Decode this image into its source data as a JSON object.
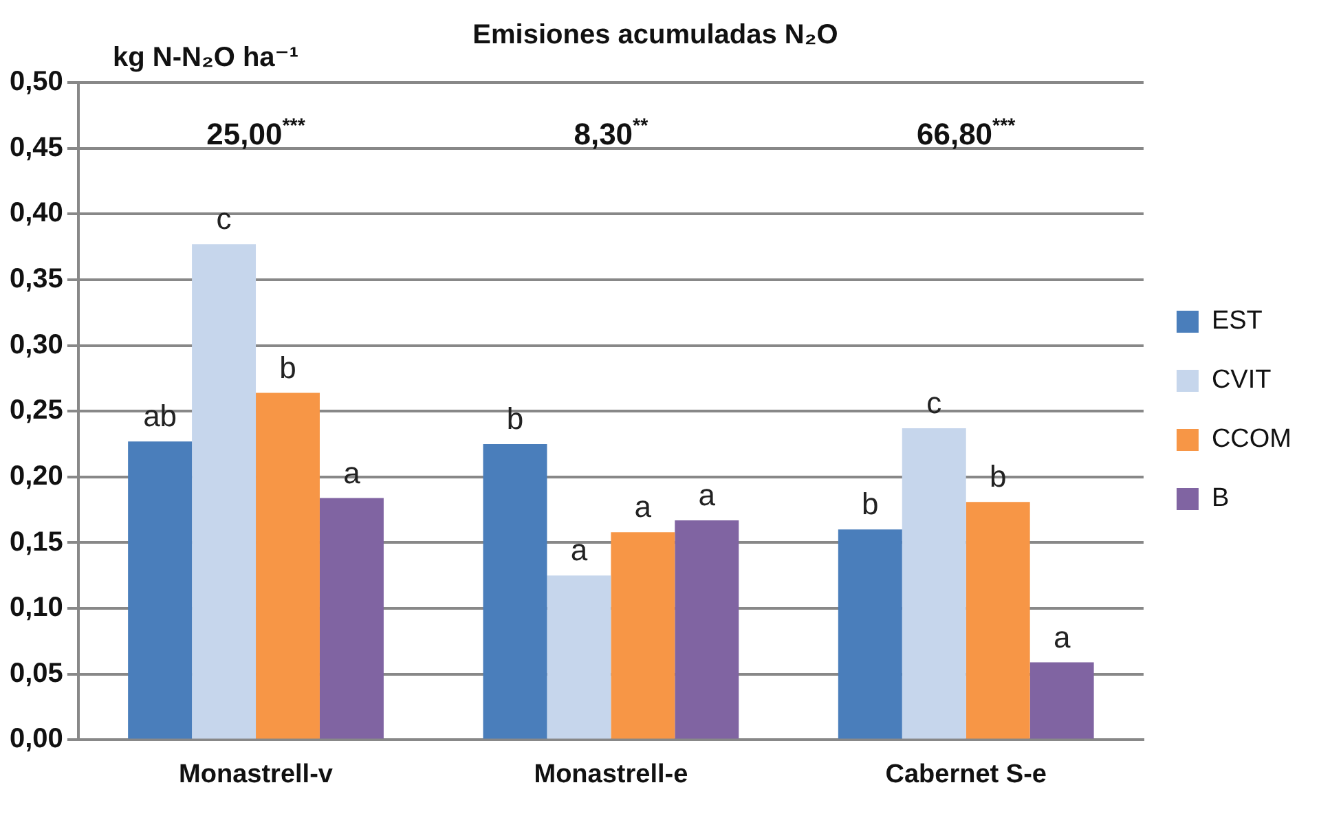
{
  "chart_data": {
    "type": "bar",
    "title": "Emisiones acumuladas N₂O",
    "ylabel": "kg N-N₂O ha⁻¹",
    "categories": [
      "Monastrell-v",
      "Monastrell-e",
      "Cabernet S-e"
    ],
    "series": [
      {
        "name": "EST",
        "color": "#4a7ebb",
        "values": [
          0.227,
          0.225,
          0.16
        ],
        "value_labels": [
          "ab",
          "b",
          "b"
        ]
      },
      {
        "name": "CVIT",
        "color": "#c6d6ec",
        "values": [
          0.377,
          0.125,
          0.237
        ],
        "value_labels": [
          "c",
          "a",
          "c"
        ]
      },
      {
        "name": "CCOM",
        "color": "#f79646",
        "values": [
          0.264,
          0.158,
          0.181
        ],
        "value_labels": [
          "b",
          "a",
          "b"
        ]
      },
      {
        "name": "B",
        "color": "#8064a2",
        "values": [
          0.184,
          0.167,
          0.059
        ],
        "value_labels": [
          "a",
          "a",
          "a"
        ]
      }
    ],
    "annotations": [
      "25,00$^{***}$",
      "8,30$^{**}$",
      "66,80$^{***}$"
    ],
    "ylim": [
      0,
      0.5
    ],
    "yticks": [
      {
        "value": 0,
        "label": "0,00"
      },
      {
        "value": 0.05,
        "label": "0,05"
      },
      {
        "value": 0.1,
        "label": "0,10"
      },
      {
        "value": 0.15,
        "label": "0,15"
      },
      {
        "value": 0.2,
        "label": "0,20"
      },
      {
        "value": 0.25,
        "label": "0,25"
      },
      {
        "value": 0.3,
        "label": "0,30"
      },
      {
        "value": 0.35,
        "label": "0,35"
      },
      {
        "value": 0.4,
        "label": "0,40"
      },
      {
        "value": 0.45,
        "label": "0,45"
      },
      {
        "value": 0.5,
        "label": "0,50"
      }
    ],
    "grid": "y",
    "legend": "right"
  }
}
